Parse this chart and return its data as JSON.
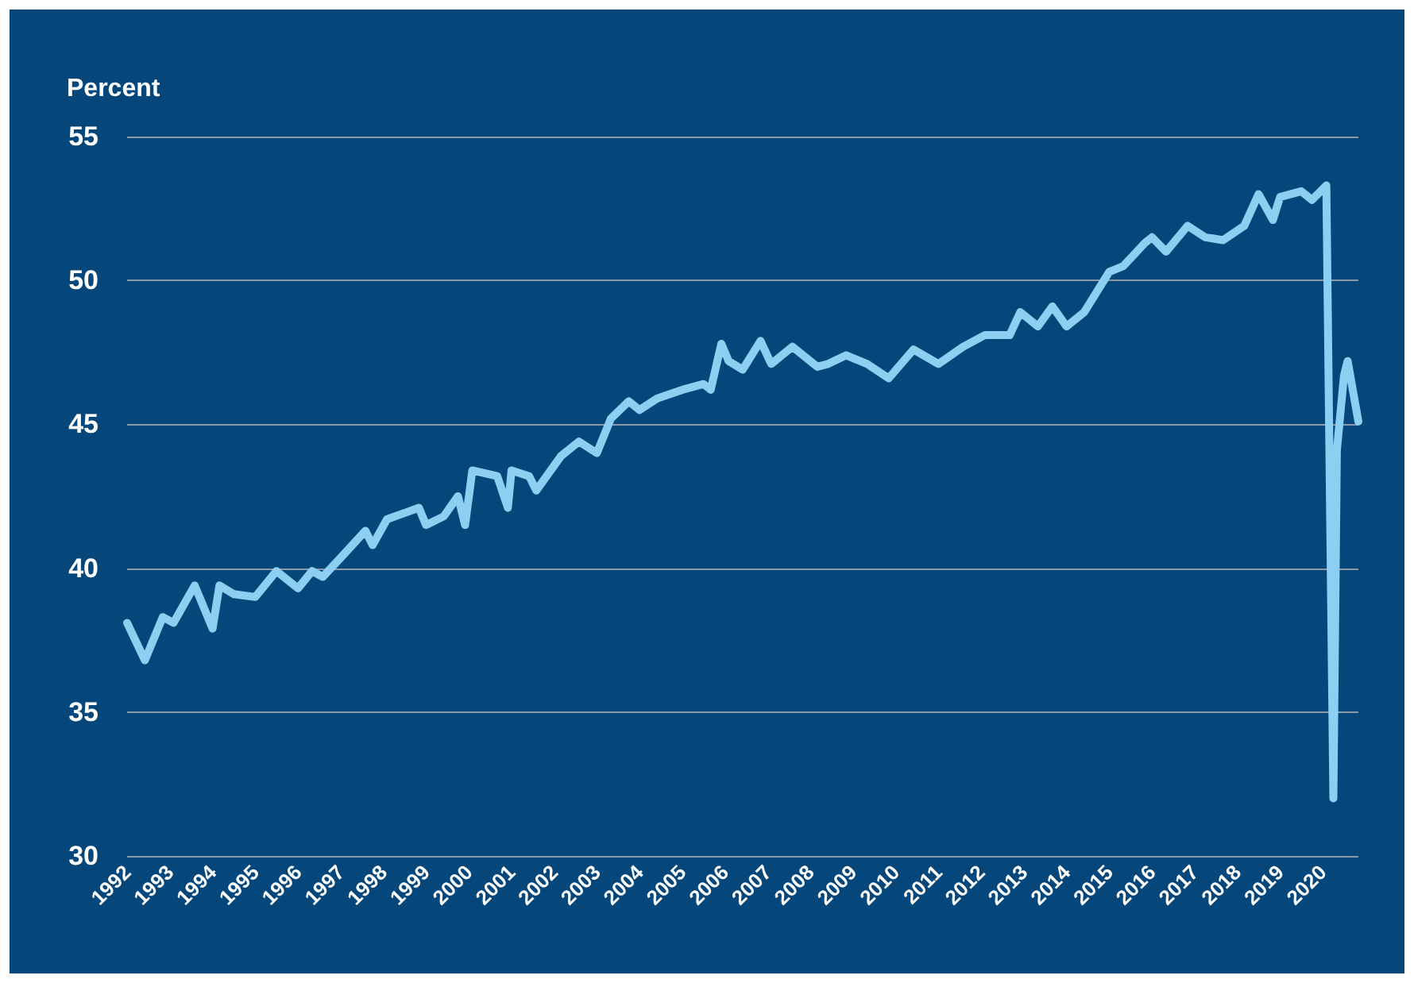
{
  "chart_data": {
    "type": "line",
    "ylabel": "Percent",
    "x": [
      "1992-01",
      "1992-06",
      "1992-11",
      "1993-02",
      "1993-08",
      "1994-01",
      "1994-03",
      "1994-07",
      "1995-01",
      "1995-07",
      "1996-01",
      "1996-05",
      "1996-08",
      "1997-02",
      "1997-08",
      "1997-10",
      "1998-02",
      "1998-11",
      "1999-01",
      "1999-06",
      "1999-10",
      "1999-12",
      "2000-02",
      "2000-09",
      "2000-12",
      "2001-01",
      "2001-06",
      "2001-08",
      "2002-03",
      "2002-08",
      "2003-01",
      "2003-05",
      "2003-10",
      "2004-01",
      "2004-06",
      "2005-01",
      "2005-07",
      "2005-09",
      "2005-12",
      "2006-02",
      "2006-06",
      "2006-11",
      "2007-02",
      "2007-08",
      "2008-03",
      "2008-06",
      "2008-11",
      "2009-05",
      "2009-11",
      "2010-06",
      "2011-01",
      "2011-08",
      "2012-02",
      "2012-09",
      "2012-12",
      "2013-05",
      "2013-09",
      "2014-01",
      "2014-06",
      "2015-01",
      "2015-05",
      "2015-11",
      "2016-01",
      "2016-05",
      "2016-11",
      "2017-04",
      "2017-09",
      "2018-03",
      "2018-07",
      "2018-11",
      "2019-01",
      "2019-07",
      "2019-10",
      "2020-02",
      "2020-04",
      "2020-05",
      "2020-07",
      "2020-08",
      "2020-11"
    ],
    "series": [
      {
        "color": "#8ccff0",
        "values": [
          38.1,
          36.8,
          38.3,
          38.1,
          39.4,
          37.9,
          39.4,
          39.1,
          39.0,
          39.9,
          39.3,
          39.9,
          39.7,
          40.5,
          41.3,
          40.8,
          41.7,
          42.1,
          41.5,
          41.8,
          42.5,
          41.5,
          43.4,
          43.2,
          42.1,
          43.4,
          43.2,
          42.7,
          43.9,
          44.4,
          44.0,
          45.2,
          45.8,
          45.5,
          45.9,
          46.2,
          46.4,
          46.2,
          47.8,
          47.2,
          46.9,
          47.9,
          47.1,
          47.7,
          47.0,
          47.1,
          47.4,
          47.1,
          46.6,
          47.6,
          47.1,
          47.7,
          48.1,
          48.1,
          48.9,
          48.4,
          49.1,
          48.4,
          48.9,
          50.3,
          50.5,
          51.3,
          51.5,
          51.0,
          51.9,
          51.5,
          51.4,
          51.9,
          53.0,
          52.1,
          52.9,
          53.1,
          52.8,
          53.3,
          32.0,
          44.1,
          46.7,
          47.2,
          45.1
        ]
      }
    ],
    "xlim": [
      "1992-01",
      "2020-11"
    ],
    "xticks": [
      "1992",
      "1993",
      "1994",
      "1995",
      "1996",
      "1997",
      "1998",
      "1999",
      "2000",
      "2001",
      "2002",
      "2003",
      "2004",
      "2005",
      "2006",
      "2007",
      "2008",
      "2009",
      "2010",
      "2011",
      "2012",
      "2013",
      "2014",
      "2015",
      "2016",
      "2017",
      "2018",
      "2019",
      "2020"
    ],
    "ylim": [
      30,
      55
    ],
    "yticks": [
      30,
      35,
      40,
      45,
      50,
      55
    ],
    "grid": "y",
    "marker": "none",
    "line_style": "solid"
  }
}
